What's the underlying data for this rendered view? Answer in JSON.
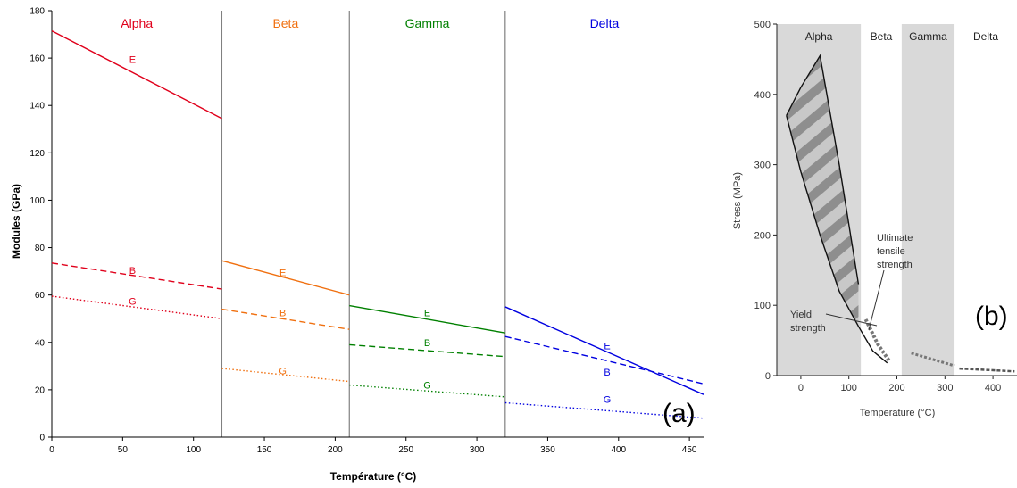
{
  "chart_data": [
    {
      "type": "line",
      "panel_tag": "(a)",
      "xlabel": "Température (°C)",
      "ylabel": "Modules (GPa)",
      "xlim": [
        0,
        460
      ],
      "ylim": [
        0,
        180
      ],
      "xticks": [
        0,
        50,
        100,
        150,
        200,
        250,
        300,
        350,
        400,
        450
      ],
      "yticks": [
        0,
        20,
        40,
        60,
        80,
        100,
        120,
        140,
        160,
        180
      ],
      "phase_boundaries": [
        120,
        210,
        320
      ],
      "phases": [
        {
          "name": "Alpha",
          "x_center": 60,
          "color": "#e0001b"
        },
        {
          "name": "Beta",
          "x_center": 165,
          "color": "#f07010"
        },
        {
          "name": "Gamma",
          "x_center": 265,
          "color": "#008000"
        },
        {
          "name": "Delta",
          "x_center": 390,
          "color": "#0000e0"
        }
      ],
      "series": [
        {
          "label": "E",
          "phase": "Alpha",
          "style": "solid",
          "color": "#e0001b",
          "x": [
            0,
            120
          ],
          "y": [
            171.5,
            134.5
          ],
          "label_at": [
            57,
            158
          ]
        },
        {
          "label": "B",
          "phase": "Alpha",
          "style": "dashed",
          "color": "#e0001b",
          "x": [
            0,
            120
          ],
          "y": [
            73.5,
            62.5
          ],
          "label_at": [
            57,
            69
          ]
        },
        {
          "label": "G",
          "phase": "Alpha",
          "style": "dotted",
          "color": "#e0001b",
          "x": [
            0,
            120
          ],
          "y": [
            59.5,
            50
          ],
          "label_at": [
            57,
            56
          ]
        },
        {
          "label": "E",
          "phase": "Beta",
          "style": "solid",
          "color": "#f07010",
          "x": [
            120,
            210
          ],
          "y": [
            74.5,
            60
          ],
          "label_at": [
            163,
            68
          ]
        },
        {
          "label": "B",
          "phase": "Beta",
          "style": "dashed",
          "color": "#f07010",
          "x": [
            120,
            210
          ],
          "y": [
            54,
            45.5
          ],
          "label_at": [
            163,
            51
          ]
        },
        {
          "label": "G",
          "phase": "Beta",
          "style": "dotted",
          "color": "#f07010",
          "x": [
            120,
            210
          ],
          "y": [
            29,
            23.5
          ],
          "label_at": [
            163,
            26.5
          ]
        },
        {
          "label": "E",
          "phase": "Gamma",
          "style": "solid",
          "color": "#008000",
          "x": [
            210,
            320
          ],
          "y": [
            55.5,
            44
          ],
          "label_at": [
            265,
            51
          ]
        },
        {
          "label": "B",
          "phase": "Gamma",
          "style": "dashed",
          "color": "#008000",
          "x": [
            210,
            320
          ],
          "y": [
            39,
            34
          ],
          "label_at": [
            265,
            38.5
          ]
        },
        {
          "label": "G",
          "phase": "Gamma",
          "style": "dotted",
          "color": "#008000",
          "x": [
            210,
            320
          ],
          "y": [
            22,
            17
          ],
          "label_at": [
            265,
            20.5
          ]
        },
        {
          "label": "E",
          "phase": "Delta",
          "style": "solid",
          "color": "#0000e0",
          "x": [
            320,
            460
          ],
          "y": [
            55,
            18
          ],
          "label_at": [
            392,
            37
          ]
        },
        {
          "label": "B",
          "phase": "Delta",
          "style": "dashed",
          "color": "#0000e0",
          "x": [
            320,
            460
          ],
          "y": [
            42.5,
            22.5
          ],
          "label_at": [
            392,
            26
          ]
        },
        {
          "label": "G",
          "phase": "Delta",
          "style": "dotted",
          "color": "#0000e0",
          "x": [
            320,
            460
          ],
          "y": [
            14.5,
            8
          ],
          "label_at": [
            392,
            14.5
          ]
        }
      ]
    },
    {
      "type": "area",
      "panel_tag": "(b)",
      "xlabel": "Temperature (°C)",
      "ylabel": "Stress (MPa)",
      "xlim": [
        -50,
        450
      ],
      "ylim": [
        0,
        500
      ],
      "xticks": [
        0,
        100,
        200,
        300,
        400
      ],
      "yticks": [
        0,
        100,
        200,
        300,
        400,
        500
      ],
      "phase_regions": [
        {
          "name": "Alpha",
          "x0": -50,
          "x1": 125,
          "shaded": true
        },
        {
          "name": "Beta",
          "x0": 125,
          "x1": 210,
          "shaded": false
        },
        {
          "name": "Gamma",
          "x0": 210,
          "x1": 320,
          "shaded": true
        },
        {
          "name": "Delta",
          "x0": 320,
          "x1": 450,
          "shaded": false
        }
      ],
      "curves": {
        "yield_strength": {
          "x": [
            -30,
            0,
            40,
            80,
            120,
            150,
            180
          ],
          "y": [
            370,
            290,
            200,
            120,
            70,
            35,
            18
          ]
        },
        "ultimate_tensile_strength": {
          "x": [
            -30,
            0,
            40,
            80,
            120
          ],
          "y": [
            370,
            410,
            455,
            300,
            130
          ]
        },
        "beta_band": {
          "x": [
            135,
            160,
            185
          ],
          "y": [
            80,
            45,
            20
          ]
        },
        "gamma_band": {
          "x": [
            230,
            280,
            320
          ],
          "y": [
            32,
            22,
            14
          ]
        },
        "delta_band": {
          "x": [
            330,
            390,
            445
          ],
          "y": [
            10,
            8,
            6
          ]
        }
      },
      "annotations": [
        {
          "text_lines": [
            "Ultimate",
            "tensile",
            "strength"
          ]
        },
        {
          "text_lines": [
            "Yield",
            "strength"
          ]
        }
      ]
    }
  ]
}
